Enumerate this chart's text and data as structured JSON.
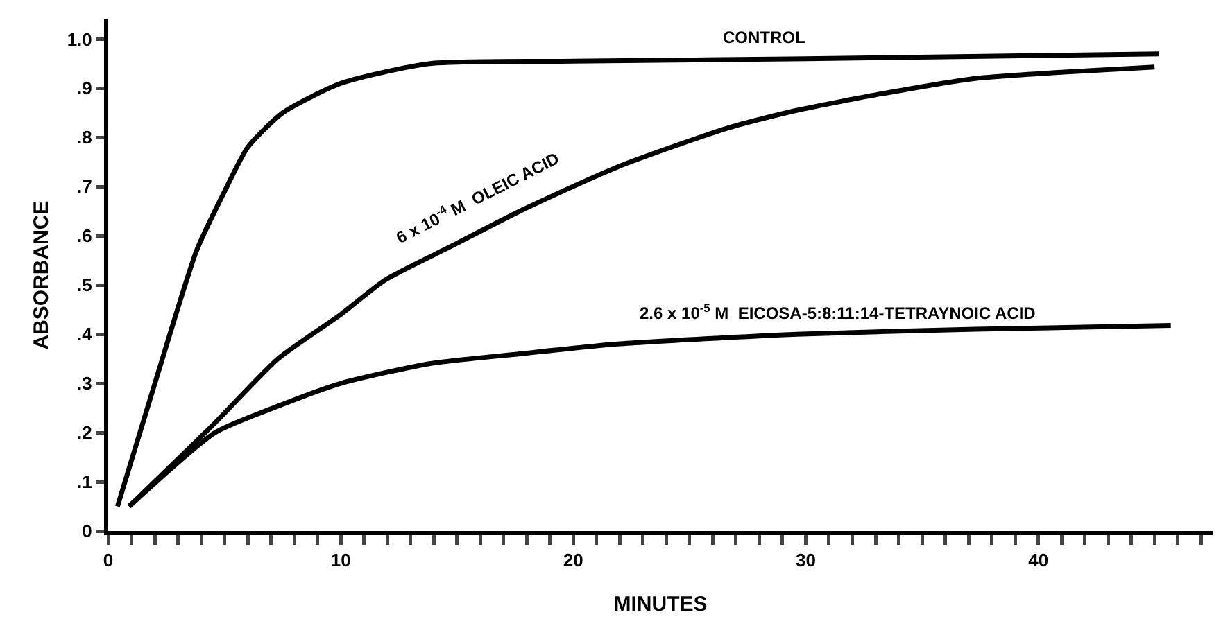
{
  "chart_data": {
    "type": "line",
    "xlabel": "MINUTES",
    "ylabel": "ABSORBANCE",
    "xlim": [
      0,
      47.5
    ],
    "ylim": [
      0,
      1.04
    ],
    "xticks": [
      0,
      {
        "value": 1,
        "label": null
      },
      {
        "value": 2,
        "label": null
      },
      {
        "value": 3,
        "label": null
      },
      {
        "value": 4,
        "label": null
      },
      {
        "value": 5,
        "label": null
      },
      {
        "value": 6,
        "label": null
      },
      {
        "value": 7,
        "label": null
      },
      {
        "value": 8,
        "label": null
      },
      {
        "value": 9,
        "label": null
      },
      10,
      {
        "value": 11,
        "label": null
      },
      {
        "value": 12,
        "label": null
      },
      {
        "value": 13,
        "label": null
      },
      {
        "value": 14,
        "label": null
      },
      {
        "value": 15,
        "label": null
      },
      {
        "value": 16,
        "label": null
      },
      {
        "value": 17,
        "label": null
      },
      {
        "value": 18,
        "label": null
      },
      {
        "value": 19,
        "label": null
      },
      20,
      {
        "value": 21,
        "label": null
      },
      {
        "value": 22,
        "label": null
      },
      {
        "value": 23,
        "label": null
      },
      {
        "value": 24,
        "label": null
      },
      {
        "value": 25,
        "label": null
      },
      {
        "value": 26,
        "label": null
      },
      {
        "value": 27,
        "label": null
      },
      {
        "value": 28,
        "label": null
      },
      {
        "value": 29,
        "label": null
      },
      30,
      {
        "value": 31,
        "label": null
      },
      {
        "value": 32,
        "label": null
      },
      {
        "value": 33,
        "label": null
      },
      {
        "value": 34,
        "label": null
      },
      {
        "value": 35,
        "label": null
      },
      {
        "value": 36,
        "label": null
      },
      {
        "value": 37,
        "label": null
      },
      {
        "value": 38,
        "label": null
      },
      {
        "value": 39,
        "label": null
      },
      40,
      {
        "value": 41,
        "label": null
      },
      {
        "value": 42,
        "label": null
      },
      {
        "value": 43,
        "label": null
      },
      {
        "value": 44,
        "label": null
      },
      {
        "value": 45,
        "label": null
      },
      {
        "value": 46,
        "label": null
      },
      {
        "value": 47,
        "label": null
      }
    ],
    "yticks": [
      0,
      {
        "value": 0.1,
        "label": ".1"
      },
      {
        "value": 0.2,
        "label": ".2"
      },
      {
        "value": 0.3,
        "label": ".3"
      },
      {
        "value": 0.4,
        "label": ".4"
      },
      {
        "value": 0.5,
        "label": ".5"
      },
      {
        "value": 0.6,
        "label": ".6"
      },
      {
        "value": 0.7,
        "label": ".7"
      },
      {
        "value": 0.8,
        "label": ".8"
      },
      {
        "value": 0.9,
        "label": ".9"
      },
      {
        "value": 1.0,
        "label": "1.0"
      }
    ],
    "grid": false,
    "legend": false,
    "marker": "none",
    "line_style": "solid",
    "series": [
      {
        "name": "CONTROL",
        "color": "#000000",
        "x": [
          0.4,
          2.2,
          3.8,
          5,
          6,
          7.5,
          10,
          13.8,
          20,
          30,
          45.2
        ],
        "values": [
          0.05,
          0.33,
          0.57,
          0.69,
          0.78,
          0.85,
          0.91,
          0.95,
          0.955,
          0.96,
          0.97
        ]
      },
      {
        "name": "6 x 10$^{-4}$ M  OLEIC ACID",
        "color": "#000000",
        "x": [
          0.9,
          4.6,
          7.3,
          10,
          11.9,
          14.8,
          17.7,
          21.9,
          26.7,
          29.6,
          33.4,
          37.3,
          41.1,
          45
        ],
        "values": [
          0.05,
          0.22,
          0.35,
          0.44,
          0.51,
          0.58,
          0.65,
          0.74,
          0.82,
          0.855,
          0.89,
          0.92,
          0.933,
          0.943
        ]
      },
      {
        "name": "2.6 x 10$^{-5}$ M  EICOSA-5:8:11:14-TETRAYNOIC ACID",
        "color": "#000000",
        "x": [
          0.9,
          4.6,
          7.1,
          10,
          13.8,
          17.7,
          21.9,
          29.6,
          37.3,
          45.7
        ],
        "values": [
          0.05,
          0.2,
          0.25,
          0.3,
          0.34,
          0.36,
          0.38,
          0.4,
          0.41,
          0.418
        ]
      }
    ]
  }
}
